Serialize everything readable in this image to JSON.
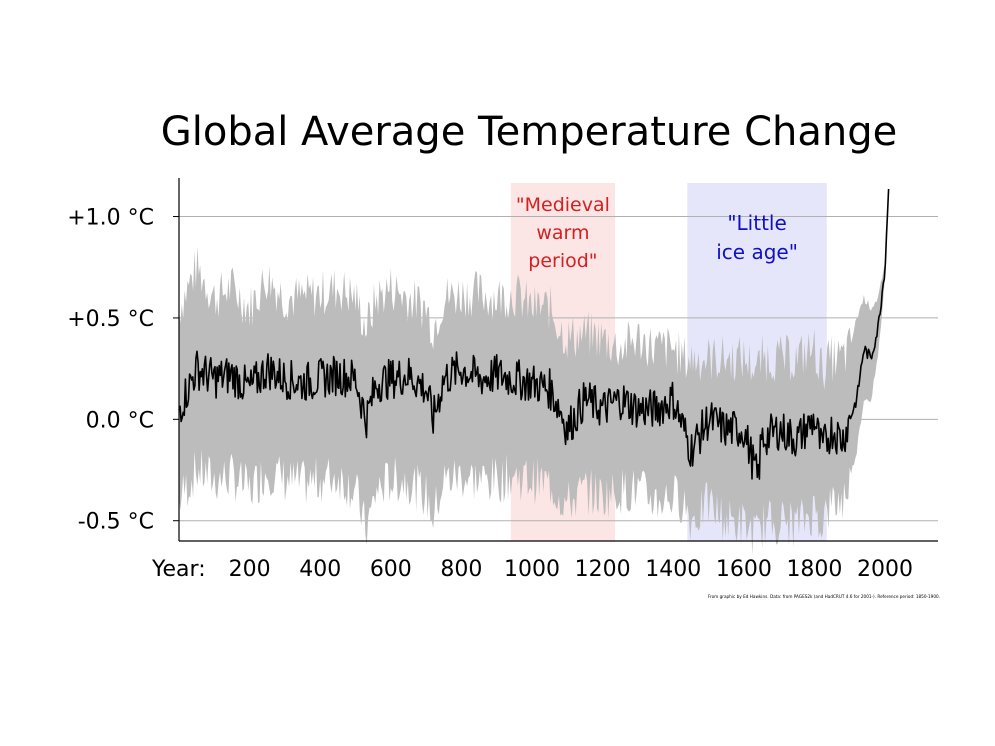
{
  "chart_data": {
    "type": "line",
    "title": "Global Average Temperature Change",
    "xlabel": "Year:",
    "ylabel": "",
    "xlim": [
      0,
      2150
    ],
    "ylim": [
      -0.6,
      1.19
    ],
    "x_ticks": [
      200,
      400,
      600,
      800,
      1000,
      1200,
      1400,
      1600,
      1800,
      2000
    ],
    "y_ticks": [
      {
        "value": 1.0,
        "label": "+1.0 °C"
      },
      {
        "value": 0.5,
        "label": "+0.5 °C"
      },
      {
        "value": 0.0,
        "label": "0.0 °C"
      },
      {
        "value": -0.5,
        "label": "-0.5 °C"
      }
    ],
    "grid": true,
    "colors": {
      "line": "#000000",
      "band": "#bcbcbc",
      "grid": "#b0b0b0",
      "red_period": "#fbe5e5",
      "blue_period": "#e6e6fa",
      "red_text": "#d42020",
      "blue_text": "#1010c8"
    },
    "periods": [
      {
        "label_lines": [
          "\"Medieval",
          "warm",
          "period\""
        ],
        "start": 940,
        "end": 1235,
        "color": "red"
      },
      {
        "label_lines": [
          "\"Little",
          "ice age\""
        ],
        "start": 1440,
        "end": 1835,
        "color": "blue"
      }
    ],
    "series": [
      {
        "role": "mean",
        "x": [
          0,
          50,
          100,
          150,
          200,
          250,
          300,
          350,
          400,
          450,
          500,
          530,
          560,
          600,
          650,
          700,
          720,
          750,
          800,
          850,
          900,
          950,
          1000,
          1050,
          1080,
          1100,
          1150,
          1200,
          1250,
          1300,
          1350,
          1400,
          1430,
          1450,
          1500,
          1550,
          1600,
          1640,
          1650,
          1700,
          1750,
          1800,
          1820,
          1850,
          1880,
          1900,
          1920,
          1940,
          1960,
          1980,
          2000,
          2010
        ],
        "values": [
          0.05,
          0.25,
          0.2,
          0.22,
          0.15,
          0.25,
          0.2,
          0.18,
          0.2,
          0.22,
          0.2,
          0.0,
          0.18,
          0.2,
          0.22,
          0.15,
          0.0,
          0.2,
          0.25,
          0.2,
          0.22,
          0.2,
          0.18,
          0.15,
          0.05,
          -0.05,
          0.1,
          0.05,
          0.1,
          0.05,
          0.05,
          0.1,
          -0.05,
          -0.15,
          0.0,
          -0.05,
          -0.05,
          -0.3,
          -0.1,
          -0.05,
          -0.1,
          0.0,
          -0.15,
          -0.05,
          -0.1,
          0.0,
          0.1,
          0.35,
          0.3,
          0.45,
          0.75,
          1.15
        ]
      },
      {
        "role": "range",
        "x": [
          0,
          50,
          100,
          150,
          200,
          250,
          300,
          350,
          400,
          450,
          500,
          530,
          560,
          600,
          650,
          700,
          720,
          750,
          800,
          850,
          900,
          950,
          1000,
          1050,
          1080,
          1100,
          1150,
          1200,
          1250,
          1300,
          1350,
          1400,
          1430,
          1450,
          1500,
          1550,
          1600,
          1640,
          1650,
          1700,
          1750,
          1800,
          1820,
          1850,
          1880,
          1900,
          1920,
          1940,
          1960,
          1980,
          2000,
          2010
        ],
        "upper": [
          0.55,
          0.75,
          0.6,
          0.65,
          0.55,
          0.7,
          0.6,
          0.6,
          0.62,
          0.65,
          0.6,
          0.45,
          0.6,
          0.65,
          0.6,
          0.55,
          0.45,
          0.6,
          0.62,
          0.62,
          0.6,
          0.62,
          0.55,
          0.55,
          0.45,
          0.4,
          0.42,
          0.4,
          0.35,
          0.4,
          0.35,
          0.35,
          0.3,
          0.3,
          0.3,
          0.3,
          0.3,
          0.25,
          0.3,
          0.3,
          0.3,
          0.35,
          0.25,
          0.3,
          0.3,
          0.35,
          0.5,
          0.6,
          0.55,
          0.6,
          0.75,
          1.15
        ],
        "lower": [
          -0.4,
          -0.25,
          -0.3,
          -0.28,
          -0.35,
          -0.25,
          -0.3,
          -0.32,
          -0.3,
          -0.28,
          -0.35,
          -0.55,
          -0.35,
          -0.3,
          -0.3,
          -0.38,
          -0.48,
          -0.3,
          -0.28,
          -0.3,
          -0.3,
          -0.28,
          -0.3,
          -0.32,
          -0.38,
          -0.42,
          -0.35,
          -0.38,
          -0.35,
          -0.35,
          -0.4,
          -0.38,
          -0.4,
          -0.5,
          -0.42,
          -0.5,
          -0.52,
          -0.58,
          -0.52,
          -0.5,
          -0.52,
          -0.45,
          -0.5,
          -0.42,
          -0.4,
          -0.3,
          -0.15,
          0.1,
          0.1,
          0.3,
          0.7,
          1.1
        ]
      }
    ]
  },
  "credit": "From graphic by Ed Hawkins.  Data: from PAGES2k (and HadCRUT 4.6 for 2001-).  Reference period: 1850-1900."
}
